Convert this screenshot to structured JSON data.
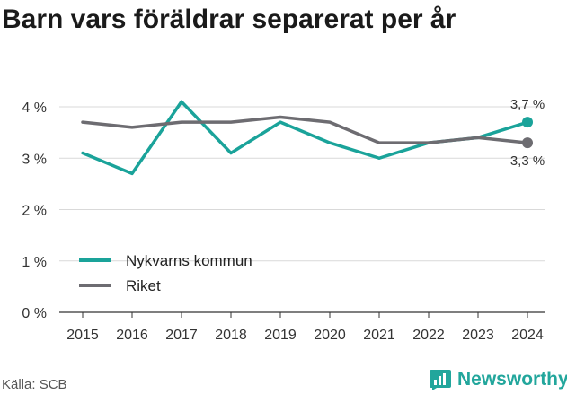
{
  "title": "Barn vars föräldrar separerat per år",
  "source": "Källa: SCB",
  "brand": {
    "name": "Newsworthy",
    "color": "#22a69c",
    "icon": "bar-chart-icon"
  },
  "chart_data": {
    "type": "line",
    "title": "Barn vars föräldrar separerat per år",
    "xlabel": "",
    "ylabel": "",
    "x": [
      "2015",
      "2016",
      "2017",
      "2018",
      "2019",
      "2020",
      "2021",
      "2022",
      "2023",
      "2024"
    ],
    "ylim": [
      0,
      4
    ],
    "yticks": [
      0,
      1,
      2,
      3,
      4
    ],
    "ytick_labels": [
      "0 %",
      "1 %",
      "2 %",
      "3 %",
      "4 %"
    ],
    "grid": true,
    "legend": "bottom-left",
    "series": [
      {
        "name": "Nykvarns kommun",
        "color": "#1aa39a",
        "values": [
          3.1,
          2.7,
          4.1,
          3.1,
          3.7,
          3.3,
          3.0,
          3.3,
          3.4,
          3.7
        ],
        "end_label": "3,7 %"
      },
      {
        "name": "Riket",
        "color": "#6d6c71",
        "values": [
          3.7,
          3.6,
          3.7,
          3.7,
          3.8,
          3.7,
          3.3,
          3.3,
          3.4,
          3.3
        ],
        "end_label": "3,3 %"
      }
    ]
  }
}
